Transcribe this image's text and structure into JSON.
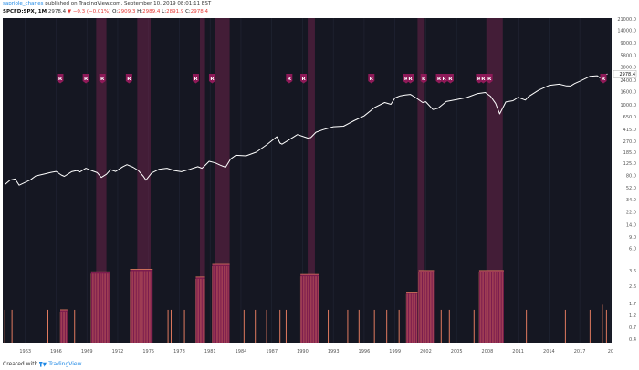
{
  "header": {
    "username": "sapriole_charles",
    "published_text": "published on TradingView.com, September 10, 2019 08:01:11 EST",
    "symbol": "SPCFD:SPX, 1M",
    "last_price": "2978.4",
    "change_text": "−0.3 (−0.01%)",
    "open_label": "O:",
    "open": "2909.3",
    "high_label": "H:",
    "high": "2989.4",
    "low_label": "L:",
    "low": "2891.9",
    "close_label": "C:",
    "close": "2978.4"
  },
  "footer": {
    "created_with": "Created with",
    "brand": "TradingView"
  },
  "colors": {
    "background": "#151722",
    "price_line": "#ffffff",
    "recession_band": "#6a2348",
    "recession_marker": "#8e1a58",
    "indicator_bar": "#e07a5f",
    "indicator_fill": "#7c1d4e",
    "current_price_label": "#ffffff"
  },
  "chart_data": {
    "type": "line",
    "title": "",
    "xlabel": "",
    "ylabel": "",
    "x_tick_labels": [
      "1963",
      "1966",
      "1969",
      "1972",
      "1975",
      "1978",
      "1981",
      "1984",
      "1987",
      "1990",
      "1993",
      "1996",
      "1999",
      "2002",
      "2005",
      "2008",
      "2011",
      "2014",
      "2017",
      "20"
    ],
    "x_range": [
      1960.8,
      2020.1
    ],
    "price_axis": {
      "scale": "log",
      "ticks": [
        "21000.0",
        "14000.0",
        "9000.0",
        "5800.0",
        "3800.0",
        "2400.0",
        "1600.0",
        "1000.0",
        "650.0",
        "415.0",
        "270.0",
        "185.0",
        "125.0",
        "80.0",
        "52.0",
        "34.0",
        "22.0",
        "14.0",
        "9.0",
        "6.0"
      ],
      "current_price_label": "2978.4"
    },
    "indicator_axis": {
      "ticks": [
        "3.6",
        "2.6",
        "1.7",
        "1.2",
        "0.7",
        "0.4"
      ]
    },
    "series": [
      {
        "x": [
          1961.0,
          1961.5,
          1962.0,
          1962.4,
          1962.8,
          1963.5,
          1964.0,
          1965.0,
          1965.5,
          1966.0,
          1966.5,
          1966.8,
          1967.5,
          1968.0,
          1968.3,
          1968.9,
          1969.5,
          1970.0,
          1970.4,
          1970.9,
          1971.3,
          1971.8,
          1972.5,
          1972.9,
          1973.5,
          1974.0,
          1974.5,
          1974.75,
          1975.3,
          1976.0,
          1976.8,
          1977.5,
          1978.2,
          1979.0,
          1979.8,
          1980.2,
          1980.5,
          1980.9,
          1981.5,
          1982.0,
          1982.5,
          1983.0,
          1983.5,
          1984.5,
          1985.5,
          1986.5,
          1987.5,
          1987.8,
          1988.0,
          1988.5,
          1989.5,
          1990.5,
          1990.8,
          1991.3,
          1992.0,
          1993.0,
          1994.0,
          1995.0,
          1996.0,
          1997.0,
          1998.0,
          1998.6,
          1999.0,
          1999.5,
          2000.0,
          2000.5,
          2001.0,
          2001.7,
          2002.0,
          2002.7,
          2003.2,
          2004.0,
          2005.0,
          2006.0,
          2007.0,
          2007.8,
          2008.3,
          2008.8,
          2009.2,
          2009.8,
          2010.5,
          2011.0,
          2011.7,
          2012.0,
          2013.0,
          2014.0,
          2015.0,
          2015.7,
          2016.1,
          2016.5,
          2017.0,
          2018.0,
          2018.7,
          2018.95,
          2019.3,
          2019.7
        ],
        "y": [
          58,
          68,
          71,
          57,
          61,
          69,
          79,
          86,
          90,
          93,
          82,
          78,
          92,
          96,
          91,
          104,
          95,
          89,
          75,
          84,
          99,
          93,
          110,
          118,
          108,
          96,
          78,
          68,
          88,
          100,
          104,
          96,
          92,
          100,
          110,
          104,
          115,
          133,
          126,
          116,
          108,
          145,
          165,
          162,
          185,
          240,
          320,
          255,
          245,
          275,
          345,
          305,
          310,
          375,
          410,
          455,
          465,
          565,
          670,
          900,
          1080,
          1010,
          1270,
          1370,
          1410,
          1440,
          1290,
          1080,
          1110,
          840,
          880,
          1120,
          1200,
          1290,
          1480,
          1540,
          1350,
          1050,
          720,
          1100,
          1150,
          1300,
          1180,
          1330,
          1680,
          1980,
          2070,
          1950,
          1940,
          2120,
          2300,
          2750,
          2800,
          2600,
          2880,
          2978
        ]
      }
    ],
    "recessions": [
      {
        "start": 1969.9,
        "end": 1970.9
      },
      {
        "start": 1973.9,
        "end": 1975.2
      },
      {
        "start": 1980.0,
        "end": 1980.5
      },
      {
        "start": 1981.5,
        "end": 1982.9
      },
      {
        "start": 1990.5,
        "end": 1991.2
      },
      {
        "start": 2001.2,
        "end": 2001.9
      },
      {
        "start": 2007.9,
        "end": 2009.5
      }
    ],
    "r_markers": [
      1966.4,
      1968.9,
      1970.5,
      1973.1,
      1979.6,
      1981.2,
      1988.7,
      1990.1,
      1996.7,
      2000.1,
      2000.5,
      2001.8,
      2003.3,
      2003.8,
      2004.4,
      2007.2,
      2007.6,
      2008.2,
      2019.3
    ],
    "indicator_bands": [
      {
        "start": 1966.4,
        "end": 1967.1,
        "level": 2.6
      },
      {
        "start": 1969.4,
        "end": 1971.2,
        "level": 5.6
      },
      {
        "start": 1973.2,
        "end": 1975.4,
        "level": 5.8
      },
      {
        "start": 1979.6,
        "end": 1980.5,
        "level": 5.2
      },
      {
        "start": 1981.2,
        "end": 1982.9,
        "level": 6.2
      },
      {
        "start": 1989.8,
        "end": 1991.6,
        "level": 5.4
      },
      {
        "start": 2000.1,
        "end": 2001.2,
        "level": 4.0
      },
      {
        "start": 2001.3,
        "end": 2002.8,
        "level": 5.7
      },
      {
        "start": 2007.2,
        "end": 2009.6,
        "level": 5.7
      }
    ],
    "indicator_spikes": [
      {
        "x": 1961.0,
        "v": 2.6
      },
      {
        "x": 1961.7,
        "v": 2.6
      },
      {
        "x": 1965.2,
        "v": 2.6
      },
      {
        "x": 1967.8,
        "v": 2.6
      },
      {
        "x": 1976.9,
        "v": 2.6
      },
      {
        "x": 1977.2,
        "v": 2.6
      },
      {
        "x": 1978.5,
        "v": 2.6
      },
      {
        "x": 1984.3,
        "v": 2.6
      },
      {
        "x": 1985.4,
        "v": 2.6
      },
      {
        "x": 1986.5,
        "v": 2.6
      },
      {
        "x": 1987.8,
        "v": 2.6
      },
      {
        "x": 1988.4,
        "v": 2.6
      },
      {
        "x": 1992.5,
        "v": 2.6
      },
      {
        "x": 1994.4,
        "v": 2.6
      },
      {
        "x": 1995.5,
        "v": 2.6
      },
      {
        "x": 1997.0,
        "v": 2.6
      },
      {
        "x": 1998.2,
        "v": 2.6
      },
      {
        "x": 1999.4,
        "v": 2.6
      },
      {
        "x": 2003.5,
        "v": 2.6
      },
      {
        "x": 2004.3,
        "v": 2.6
      },
      {
        "x": 2006.7,
        "v": 2.6
      },
      {
        "x": 2011.8,
        "v": 2.6
      },
      {
        "x": 2015.6,
        "v": 2.6
      },
      {
        "x": 2018.0,
        "v": 2.6
      },
      {
        "x": 2019.2,
        "v": 3.0
      },
      {
        "x": 2019.6,
        "v": 2.6
      }
    ]
  }
}
